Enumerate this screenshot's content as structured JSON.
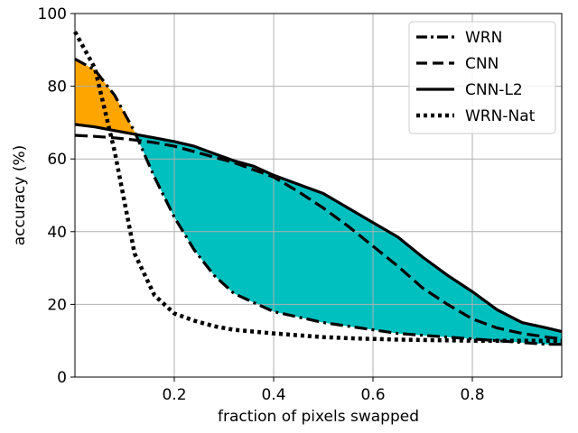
{
  "chart_data": {
    "type": "line",
    "xlabel": "fraction of pixels swapped",
    "ylabel": "accuracy (%)",
    "xlim": [
      0.0,
      0.98
    ],
    "ylim": [
      0,
      100
    ],
    "xticks": [
      0.2,
      0.4,
      0.6,
      0.8
    ],
    "xtick_labels": [
      "0.2",
      "0.4",
      "0.6",
      "0.8"
    ],
    "yticks": [
      0,
      20,
      40,
      60,
      80,
      100
    ],
    "ytick_labels": [
      "0",
      "20",
      "40",
      "60",
      "80",
      "100"
    ],
    "grid": true,
    "legend_position": "top-right",
    "x": [
      0.0,
      0.04,
      0.08,
      0.12,
      0.16,
      0.2,
      0.24,
      0.28,
      0.32,
      0.36,
      0.4,
      0.45,
      0.5,
      0.55,
      0.6,
      0.65,
      0.7,
      0.75,
      0.8,
      0.85,
      0.9,
      0.95,
      0.98
    ],
    "series": [
      {
        "name": "WRN",
        "style": "dashdot",
        "values": [
          87.5,
          84.5,
          77.5,
          67.5,
          55.0,
          44.0,
          35.0,
          28.0,
          23.0,
          20.5,
          18.0,
          16.5,
          15.0,
          14.0,
          13.0,
          12.0,
          11.5,
          11.0,
          10.5,
          10.0,
          9.5,
          9.0,
          9.0
        ]
      },
      {
        "name": "CNN",
        "style": "dashed",
        "values": [
          66.5,
          66.2,
          65.8,
          65.2,
          64.5,
          63.5,
          62.0,
          60.5,
          59.0,
          57.0,
          55.0,
          51.0,
          46.5,
          41.5,
          36.0,
          30.5,
          24.5,
          20.0,
          16.0,
          13.5,
          12.0,
          11.0,
          10.5
        ]
      },
      {
        "name": "CNN-L2",
        "style": "solid",
        "values": [
          69.5,
          68.8,
          67.8,
          66.8,
          65.8,
          64.8,
          63.5,
          61.5,
          59.5,
          58.0,
          55.5,
          53.0,
          50.5,
          46.5,
          42.5,
          38.5,
          33.0,
          28.0,
          23.5,
          18.5,
          15.0,
          13.5,
          12.5
        ]
      },
      {
        "name": "WRN-Nat",
        "style": "dotted",
        "values": [
          95.0,
          85.0,
          62.0,
          34.0,
          22.5,
          17.5,
          15.5,
          14.0,
          13.0,
          12.5,
          12.0,
          11.5,
          11.0,
          10.7,
          10.5,
          10.3,
          10.2,
          10.1,
          10.0,
          10.0,
          10.0,
          10.0,
          10.0
        ]
      }
    ],
    "fills": [
      {
        "between": [
          "WRN",
          "CNN-L2"
        ],
        "where": "WRN above CNN-L2",
        "color": "#FFA500"
      },
      {
        "between": [
          "WRN",
          "CNN-L2"
        ],
        "where": "WRN below CNN-L2",
        "color": "#00BFBF"
      }
    ],
    "colors": {
      "line": "#000000",
      "grid": "#b0b0b0",
      "orange_fill": "#FFA500",
      "teal_fill": "#00BFBF"
    }
  }
}
